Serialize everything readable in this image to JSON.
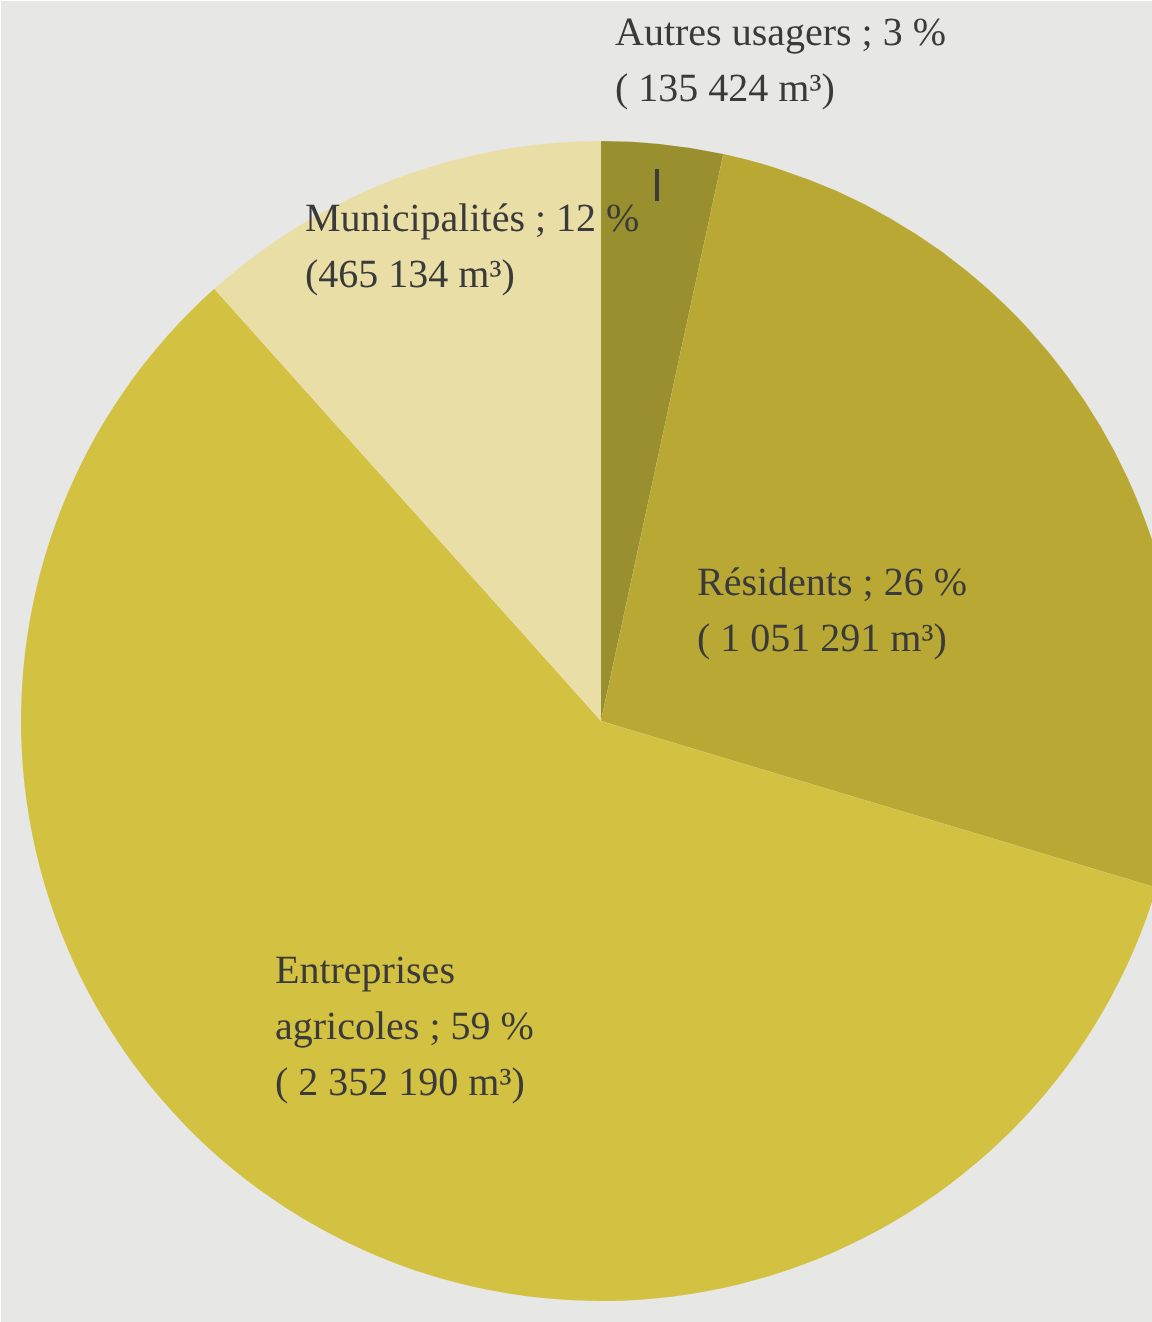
{
  "chart_data": {
    "type": "pie",
    "categories": [
      "Autres usagers ; 3 %",
      "Résidents ; 26 %",
      "Entreprises\nagricoles ; 59 %",
      "Municipalités ; 12 %"
    ],
    "values": [
      135424,
      1051291,
      2352190,
      465134
    ],
    "value_labels": [
      "( 135 424 m³)",
      "( 1 051 291 m³)",
      "( 2 352 190 m³)",
      "(465 134 m³)"
    ],
    "colors": [
      "#9a8f2e",
      "#b9a934",
      "#d3c142",
      "#e9dfa6"
    ]
  }
}
